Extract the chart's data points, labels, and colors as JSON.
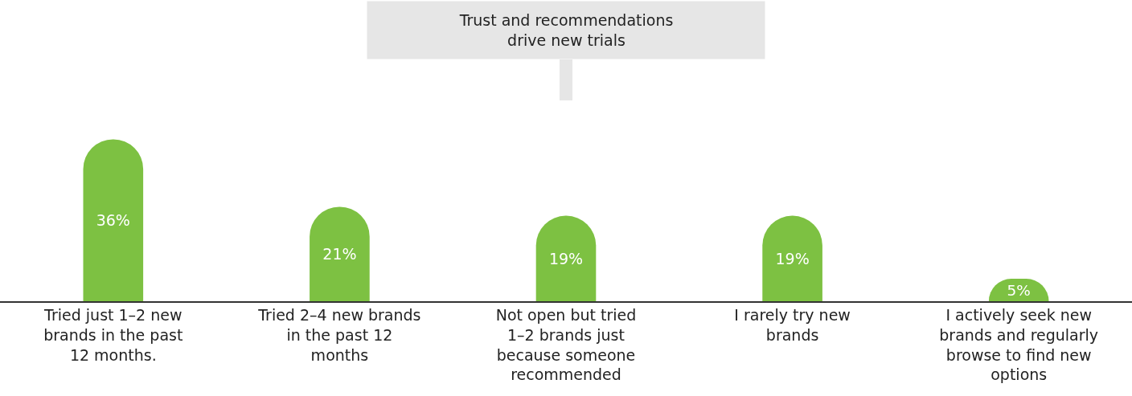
{
  "chart_data": {
    "type": "bar",
    "categories": [
      "Tried just 1–2 new brands in the past 12 months.",
      "Tried 2–4 new brands in the past 12 months",
      "Not open but tried 1–2 brands just because someone recommended",
      "I rarely try new brands",
      "I actively seek new brands and regularly browse to find new options"
    ],
    "values": [
      36,
      21,
      19,
      19,
      5
    ],
    "color": "#7dc142",
    "data_labels": true,
    "value_labels": [
      "36%",
      "21%",
      "19%",
      "19%",
      "5%"
    ],
    "annotations": [
      "Trust and recommendations drive new trials"
    ]
  }
}
